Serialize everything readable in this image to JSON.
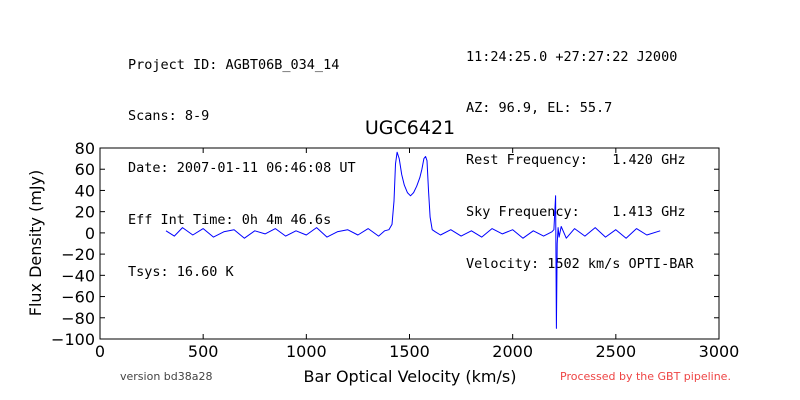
{
  "header": {
    "left": [
      "Project ID: AGBT06B_034_14",
      "Scans: 8-9",
      "Date: 2007-01-11 06:46:08 UT",
      "Eff Int Time: 0h 4m 46.6s",
      "Tsys: 16.60 K"
    ],
    "right": [
      "11:24:25.0 +27:27:22 J2000",
      "AZ: 96.9, EL: 55.7",
      "Rest Frequency:   1.420 GHz",
      "Sky Frequency:    1.413 GHz",
      "Velocity: 1502 km/s OPTI-BAR"
    ]
  },
  "footer": {
    "version": "version bd38a28",
    "pipeline": "Processed by the GBT pipeline."
  },
  "colors": {
    "line": "#0000ff",
    "pipeline_text": "#ee4444"
  },
  "chart_data": {
    "type": "line",
    "title": "UGC6421",
    "xlabel": "Bar Optical Velocity (km/s)",
    "ylabel": "Flux Density (mJy)",
    "xlim": [
      0,
      3000
    ],
    "ylim": [
      -100,
      80
    ],
    "xticks": [
      0,
      500,
      1000,
      1500,
      2000,
      2500,
      3000
    ],
    "yticks": [
      -100,
      -80,
      -60,
      -40,
      -20,
      0,
      20,
      40,
      60,
      80
    ],
    "grid": false,
    "series": [
      {
        "x": [
          320,
          360,
          400,
          450,
          500,
          550,
          600,
          650,
          700,
          750,
          800,
          850,
          900,
          950,
          1000,
          1050,
          1100,
          1150,
          1200,
          1250,
          1300,
          1350,
          1380,
          1400,
          1415,
          1425,
          1432,
          1440,
          1450,
          1462,
          1475,
          1490,
          1505,
          1520,
          1535,
          1550,
          1560,
          1570,
          1578,
          1585,
          1592,
          1600,
          1610,
          1625,
          1650,
          1700,
          1750,
          1800,
          1850,
          1900,
          1950,
          2000,
          2050,
          2100,
          2150,
          2190,
          2200,
          2208,
          2212,
          2216,
          2220,
          2225,
          2235,
          2260,
          2300,
          2350,
          2400,
          2450,
          2500,
          2550,
          2600,
          2650,
          2715
        ],
        "y": [
          2,
          -3,
          5,
          -2,
          4,
          -4,
          1,
          3,
          -5,
          2,
          -1,
          4,
          -3,
          2,
          -2,
          5,
          -4,
          1,
          3,
          -2,
          4,
          -3,
          2,
          3,
          8,
          30,
          65,
          76,
          70,
          55,
          45,
          38,
          35,
          38,
          44,
          52,
          60,
          70,
          72,
          68,
          40,
          15,
          3,
          1,
          -2,
          3,
          -3,
          2,
          -4,
          4,
          -1,
          3,
          -5,
          2,
          -3,
          1,
          3,
          35,
          -90,
          -10,
          5,
          -4,
          6,
          -5,
          4,
          -3,
          5,
          -4,
          3,
          -5,
          4,
          -2,
          2
        ]
      }
    ]
  }
}
